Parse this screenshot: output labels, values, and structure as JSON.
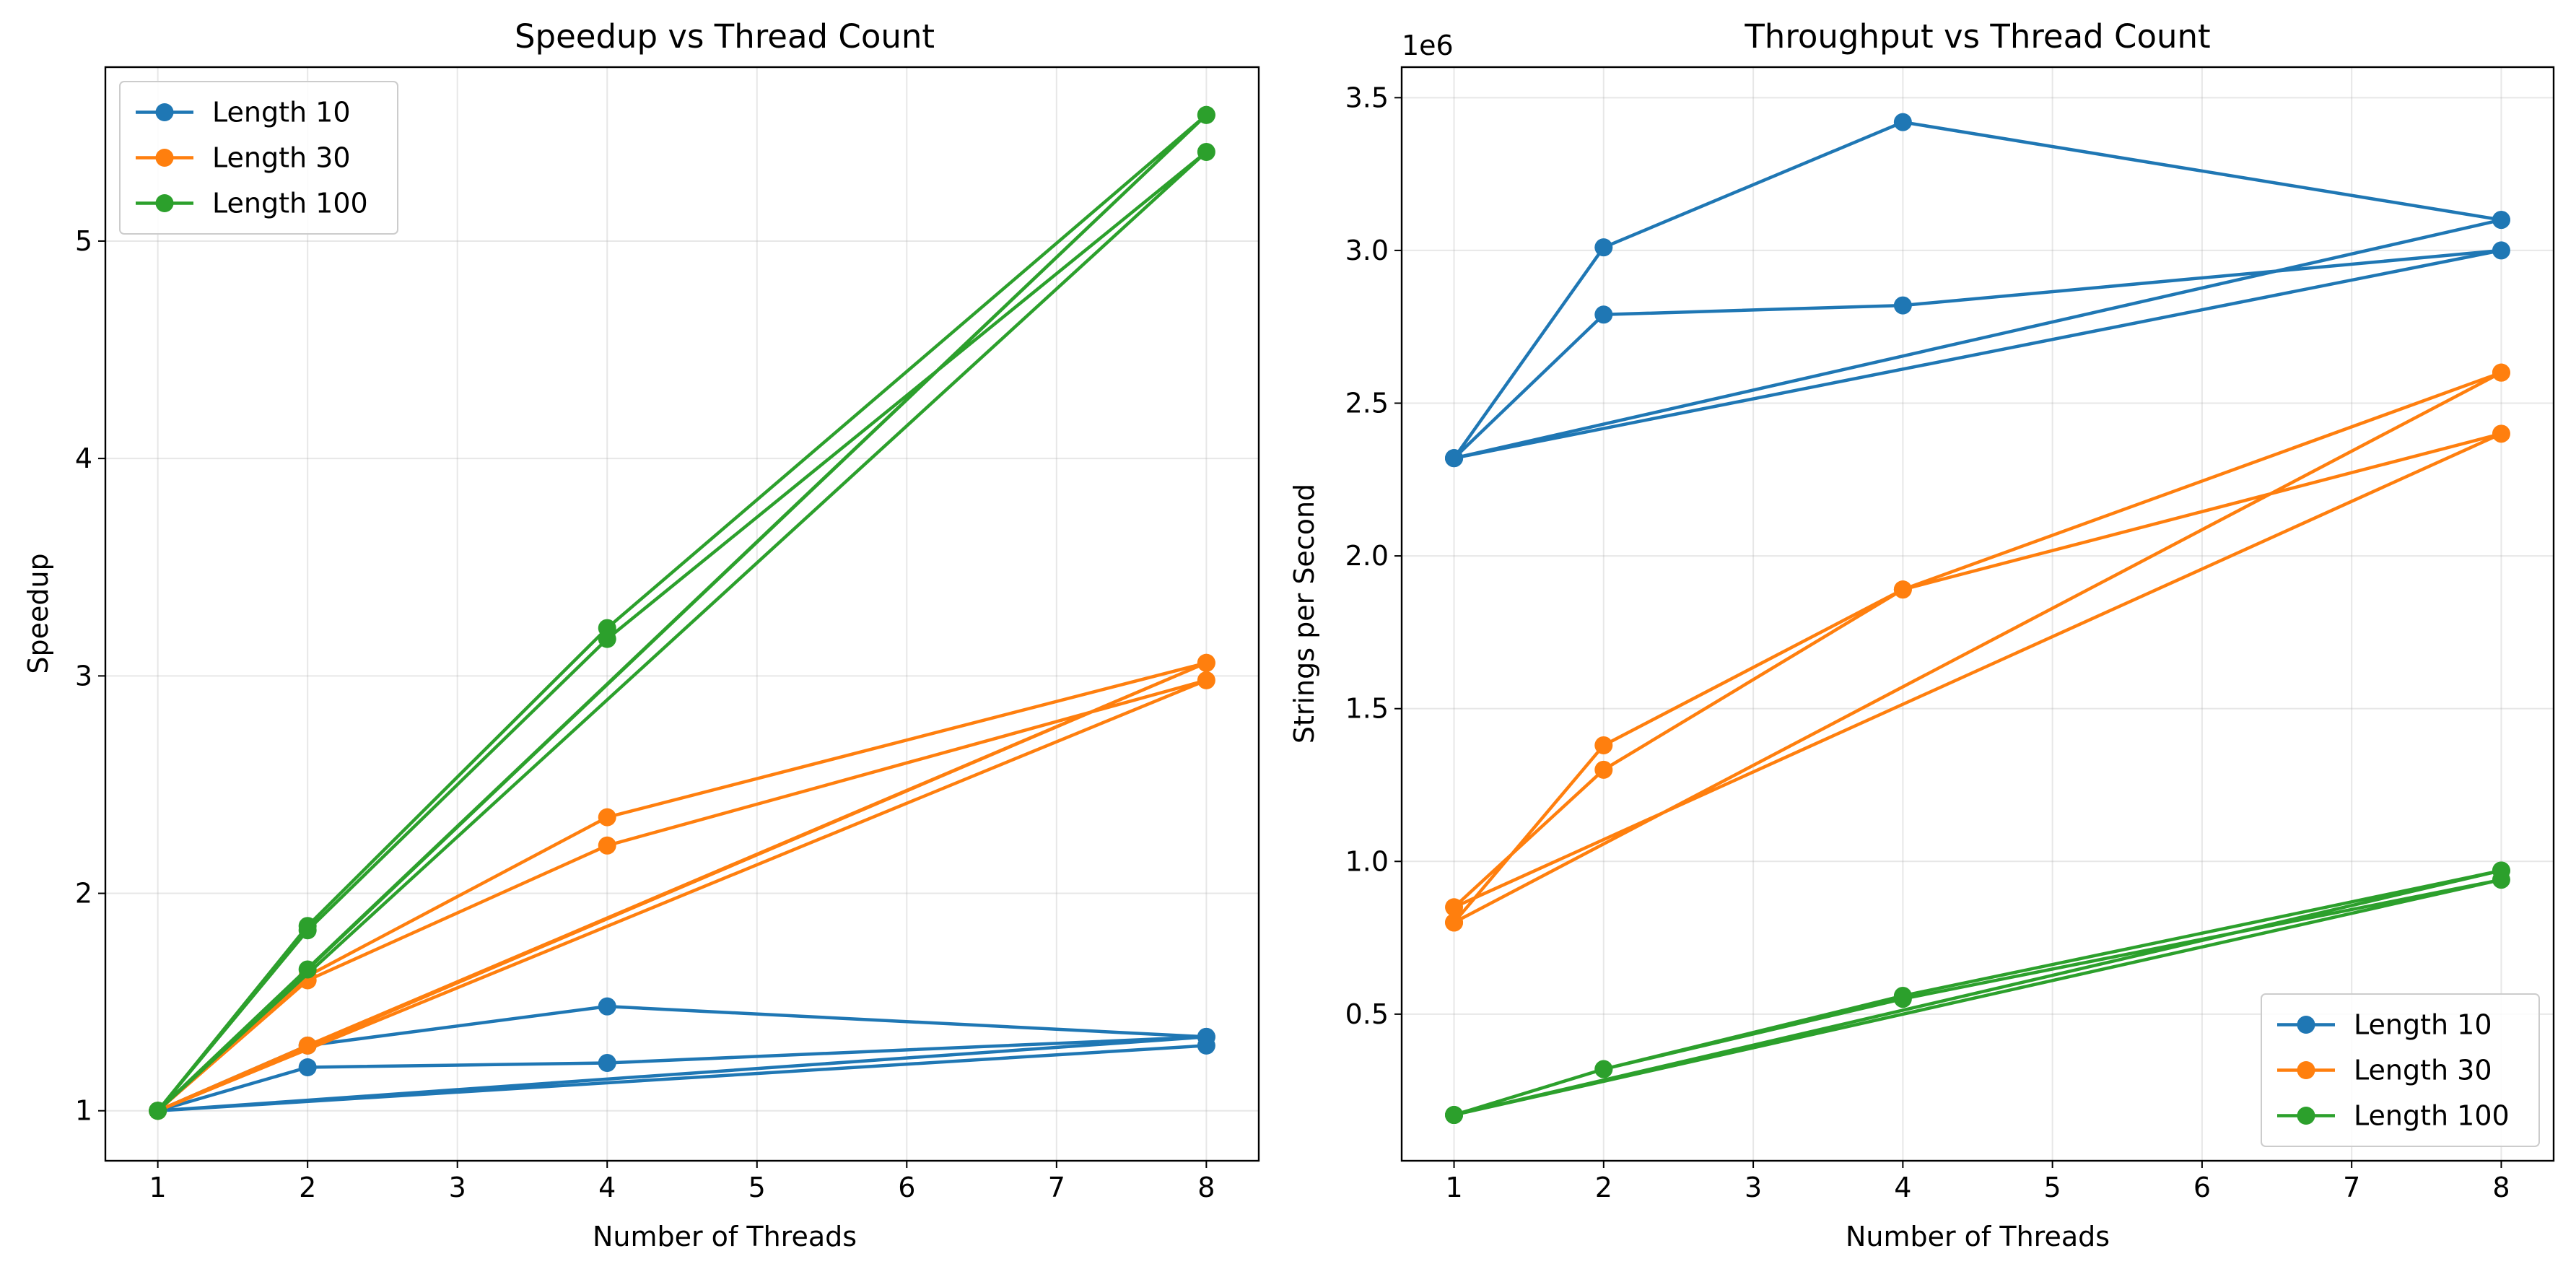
{
  "chart_data": [
    {
      "type": "line",
      "title": "Speedup vs Thread Count",
      "xlabel": "Number of Threads",
      "ylabel": "Speedup",
      "xlim": [
        0.65,
        8.35
      ],
      "ylim": [
        0.77,
        5.8
      ],
      "xticks": [
        1,
        2,
        3,
        4,
        5,
        6,
        7,
        8
      ],
      "yticks": [
        1,
        2,
        3,
        4,
        5
      ],
      "grid": true,
      "legend": "top-left",
      "legend_entries": [
        "Length 10",
        "Length 30",
        "Length 100"
      ],
      "series": [
        {
          "name": "Length 10",
          "color": "#1f77b4",
          "x": [
            1,
            2,
            4,
            8,
            1,
            2,
            4,
            8,
            1,
            8
          ],
          "y": [
            1.0,
            1.3,
            1.48,
            1.34,
            1.0,
            1.2,
            1.22,
            1.34,
            1.0,
            1.3
          ]
        },
        {
          "name": "Length 30",
          "color": "#ff7f0e",
          "x": [
            1,
            2,
            4,
            8,
            1,
            2,
            4,
            8,
            1,
            2,
            8
          ],
          "y": [
            1.0,
            1.62,
            2.35,
            3.06,
            1.0,
            1.6,
            2.22,
            2.98,
            1.0,
            1.3,
            3.06
          ]
        },
        {
          "name": "Length 100",
          "color": "#2ca02c",
          "x": [
            1,
            2,
            4,
            8,
            1,
            2,
            4,
            8,
            1,
            2,
            8
          ],
          "y": [
            1.0,
            1.85,
            3.22,
            5.58,
            1.0,
            1.83,
            3.17,
            5.41,
            1.0,
            1.65,
            5.58
          ]
        }
      ]
    },
    {
      "type": "line",
      "title": "Throughput vs Thread Count",
      "xlabel": "Number of Threads",
      "ylabel": "Strings per Second",
      "y_offset_label": "1e6",
      "xlim": [
        0.65,
        8.35
      ],
      "ylim": [
        0.02,
        3.6
      ],
      "xticks": [
        1,
        2,
        3,
        4,
        5,
        6,
        7,
        8
      ],
      "yticks": [
        0.5,
        1.0,
        1.5,
        2.0,
        2.5,
        3.0,
        3.5
      ],
      "ytick_labels": [
        "0.5",
        "1.0",
        "1.5",
        "2.0",
        "2.5",
        "3.0",
        "3.5"
      ],
      "grid": true,
      "legend": "bottom-right",
      "legend_entries": [
        "Length 10",
        "Length 30",
        "Length 100"
      ],
      "series": [
        {
          "name": "Length 10",
          "color": "#1f77b4",
          "x": [
            1,
            2,
            4,
            8,
            1,
            2,
            4,
            8,
            1,
            8
          ],
          "y": [
            2.32,
            3.01,
            3.42,
            3.1,
            2.32,
            2.79,
            2.82,
            3.0,
            2.32,
            3.1
          ]
        },
        {
          "name": "Length 30",
          "color": "#ff7f0e",
          "x": [
            1,
            2,
            4,
            8,
            1,
            2,
            4,
            8,
            1,
            8
          ],
          "y": [
            0.8,
            1.38,
            1.89,
            2.4,
            0.85,
            1.3,
            1.89,
            2.6,
            0.8,
            2.6
          ]
        },
        {
          "name": "Length 100",
          "color": "#2ca02c",
          "x": [
            1,
            2,
            4,
            8,
            1,
            2,
            4,
            8,
            1,
            8
          ],
          "y": [
            0.17,
            0.32,
            0.56,
            0.97,
            0.17,
            0.32,
            0.55,
            0.94,
            0.17,
            0.97
          ]
        }
      ]
    }
  ]
}
